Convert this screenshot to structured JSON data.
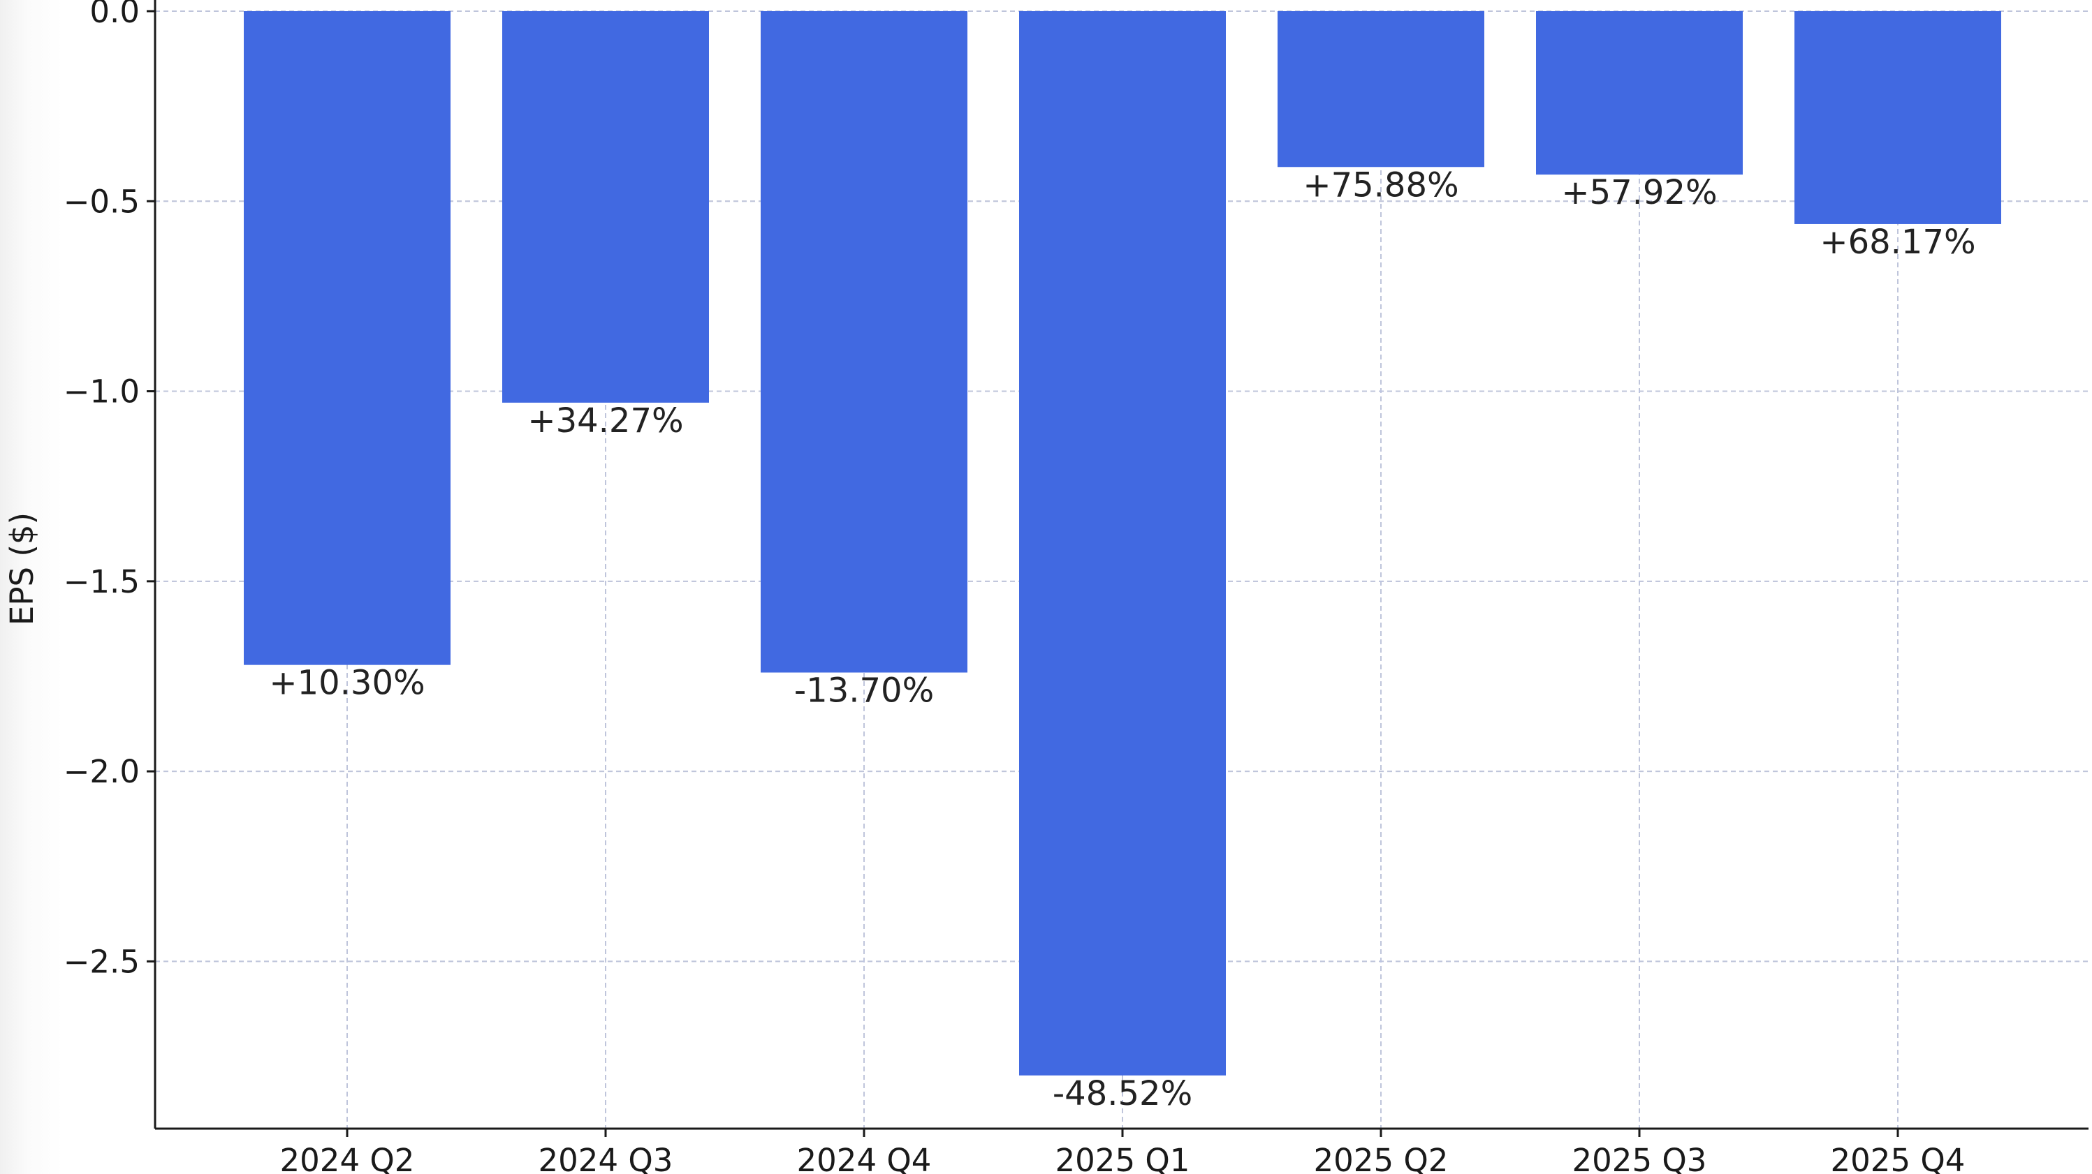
{
  "chart_data": {
    "type": "bar",
    "title": "",
    "xlabel": "",
    "ylabel": "EPS ($)",
    "categories": [
      "2024 Q2",
      "2024 Q3",
      "2024 Q4",
      "2025 Q1",
      "2025 Q2",
      "2025 Q3",
      "2025 Q4"
    ],
    "values": [
      -1.72,
      -1.03,
      -1.74,
      -2.8,
      -0.41,
      -0.43,
      -0.56
    ],
    "bar_labels": [
      "+10.30%",
      "+34.27%",
      "-13.70%",
      "-48.52%",
      "+75.88%",
      "+57.92%",
      "+68.17%"
    ],
    "ylim": [
      -2.94,
      0.0
    ],
    "yticks": [
      0.0,
      -0.5,
      -1.0,
      -1.5,
      -2.0,
      -2.5
    ],
    "ytick_labels": [
      "0.0",
      "−0.5",
      "−1.0",
      "−1.5",
      "−2.0",
      "−2.5"
    ],
    "grid": true,
    "bar_color": "#4169E1",
    "grid_color": "#c8c8c8",
    "axis_color": "#1a1a1a"
  }
}
